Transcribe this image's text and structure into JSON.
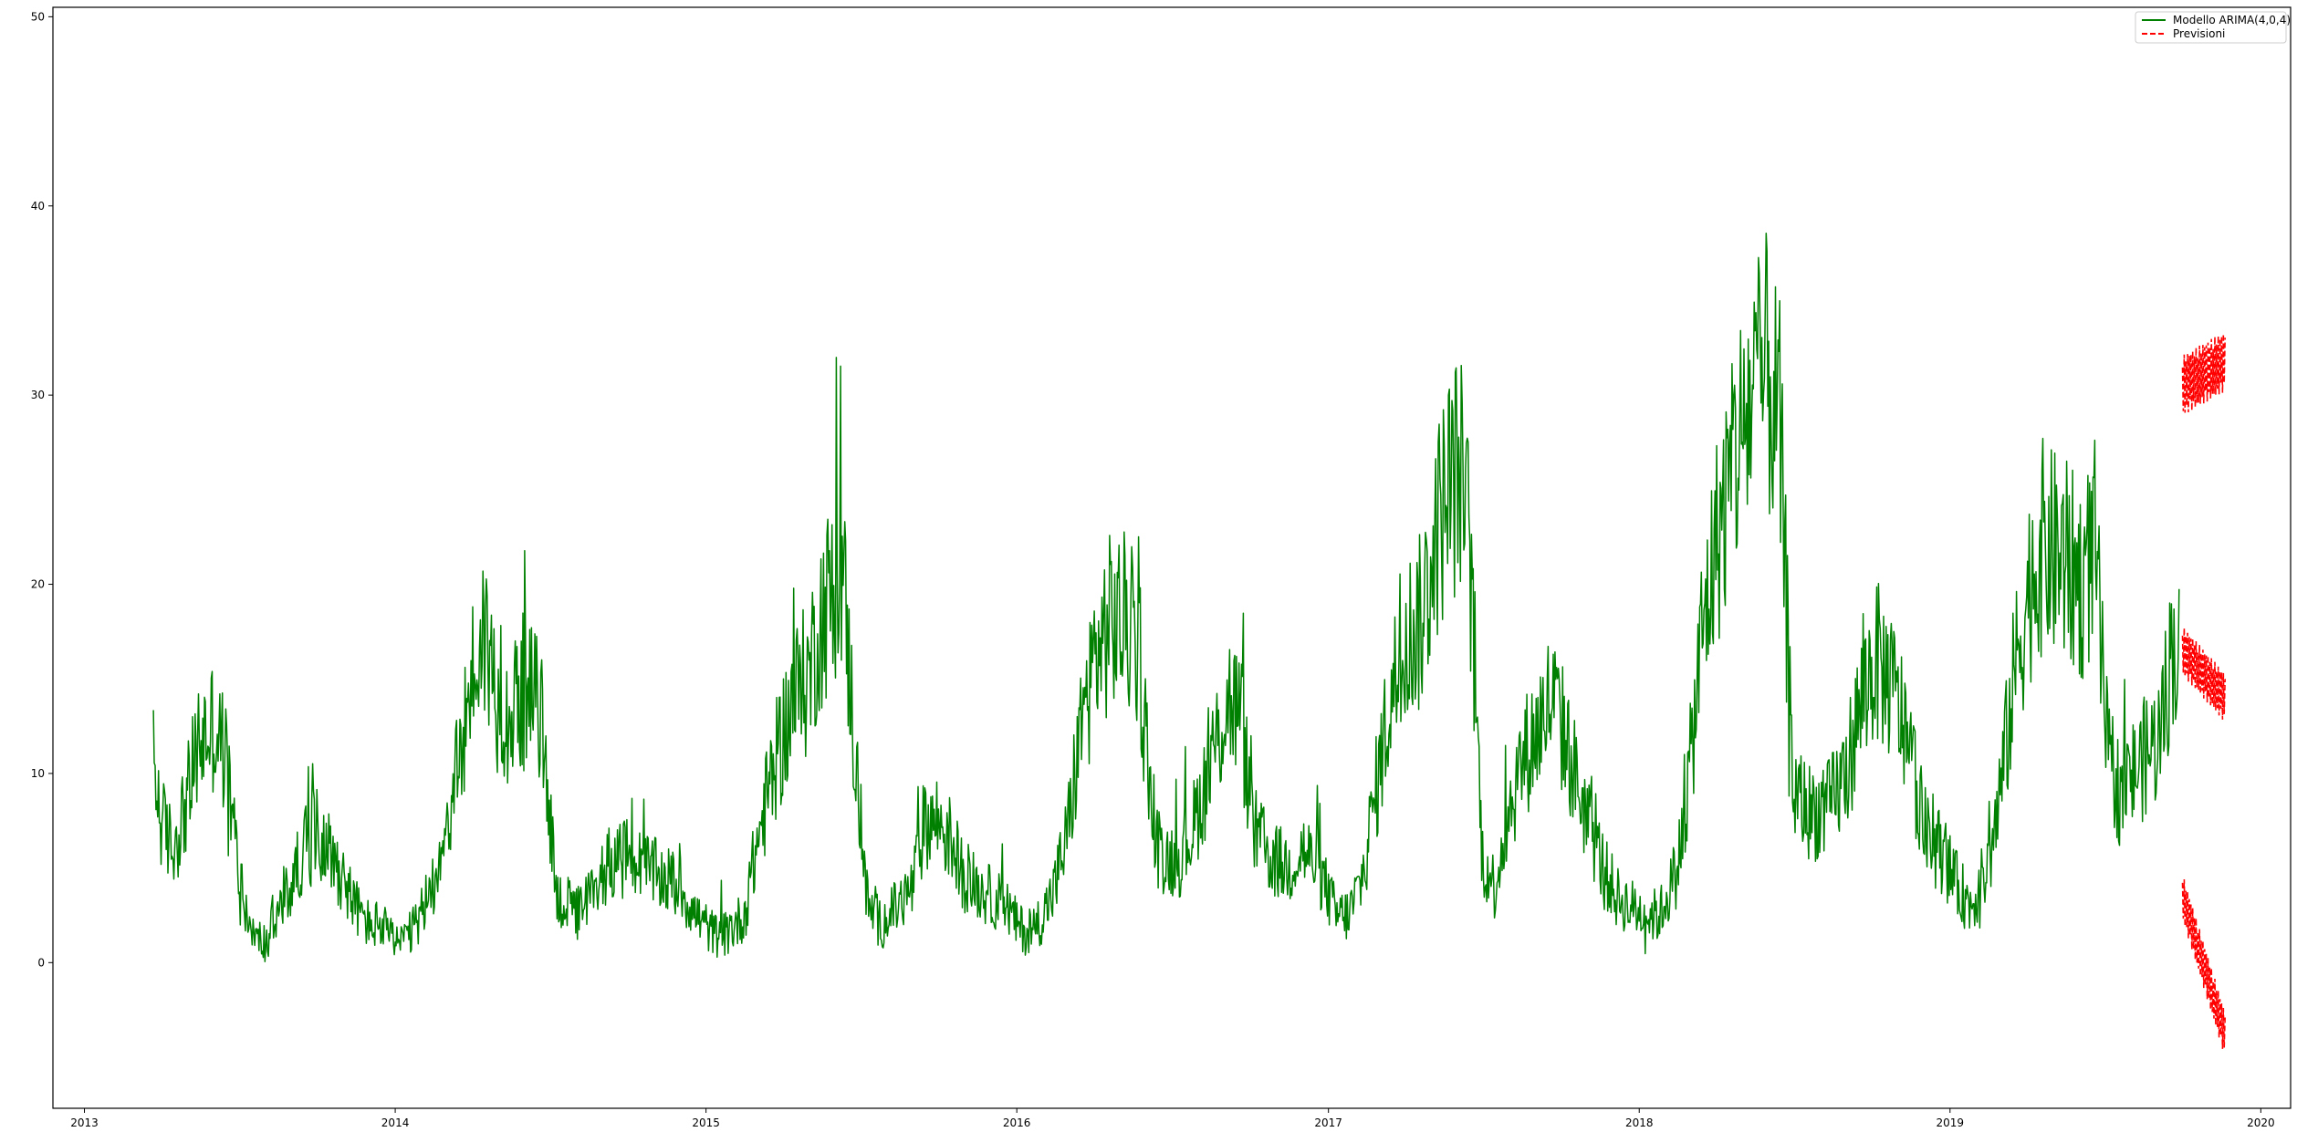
{
  "chart_data": {
    "type": "line",
    "title": "",
    "xlabel": "",
    "ylabel": "",
    "x_range": [
      "2012-11-25",
      "2020-02-05"
    ],
    "ylim": [
      -7.7,
      50.5
    ],
    "grid": false,
    "legend_position": "top-right",
    "x_tick_labels": [
      "2013",
      "2014",
      "2015",
      "2016",
      "2017",
      "2018",
      "2019",
      "2020"
    ],
    "x_tick_dates": [
      "2013-01-01",
      "2014-01-01",
      "2015-01-01",
      "2016-01-01",
      "2017-01-01",
      "2018-01-01",
      "2019-01-01",
      "2020-01-01"
    ],
    "y_ticks": [
      0,
      10,
      20,
      30,
      40,
      50
    ],
    "y_tick_labels": [
      "0",
      "10",
      "20",
      "30",
      "40",
      "50"
    ],
    "series": [
      {
        "name": "Modello ARIMA(4,0,4)",
        "color": "#008000",
        "style": "solid",
        "date_range": [
          "2013-03-23",
          "2019-09-27"
        ],
        "points": [
          [
            "2013-03-23",
            10.5
          ],
          [
            "2013-04-01",
            7.5
          ],
          [
            "2013-04-15",
            6.0
          ],
          [
            "2013-05-01",
            8.5
          ],
          [
            "2013-05-15",
            11.5
          ],
          [
            "2013-06-01",
            12.5
          ],
          [
            "2013-06-15",
            11.0
          ],
          [
            "2013-07-01",
            5.0
          ],
          [
            "2013-07-15",
            1.5
          ],
          [
            "2013-08-01",
            1.0
          ],
          [
            "2013-08-15",
            2.5
          ],
          [
            "2013-09-01",
            4.0
          ],
          [
            "2013-09-15",
            6.0
          ],
          [
            "2013-10-01",
            7.0
          ],
          [
            "2013-10-15",
            6.0
          ],
          [
            "2013-11-01",
            4.5
          ],
          [
            "2013-11-15",
            3.0
          ],
          [
            "2013-12-01",
            2.0
          ],
          [
            "2013-12-15",
            2.0
          ],
          [
            "2014-01-01",
            1.0
          ],
          [
            "2014-01-20",
            1.5
          ],
          [
            "2014-02-10",
            3.5
          ],
          [
            "2014-03-01",
            7.0
          ],
          [
            "2014-03-15",
            10.0
          ],
          [
            "2014-04-01",
            15.0
          ],
          [
            "2014-04-15",
            17.5
          ],
          [
            "2014-05-01",
            14.0
          ],
          [
            "2014-05-15",
            13.0
          ],
          [
            "2014-06-01",
            14.5
          ],
          [
            "2014-06-20",
            13.5
          ],
          [
            "2014-07-10",
            3.5
          ],
          [
            "2014-08-01",
            2.5
          ],
          [
            "2014-08-20",
            3.5
          ],
          [
            "2014-09-10",
            5.5
          ],
          [
            "2014-10-01",
            5.5
          ],
          [
            "2014-10-20",
            5.0
          ],
          [
            "2014-11-10",
            4.5
          ],
          [
            "2014-12-01",
            4.0
          ],
          [
            "2014-12-20",
            2.5
          ],
          [
            "2015-01-10",
            1.5
          ],
          [
            "2015-01-25",
            1.5
          ],
          [
            "2015-02-15",
            2.5
          ],
          [
            "2015-03-01",
            6.0
          ],
          [
            "2015-03-15",
            9.0
          ],
          [
            "2015-04-01",
            12.0
          ],
          [
            "2015-04-15",
            14.0
          ],
          [
            "2015-05-01",
            15.0
          ],
          [
            "2015-05-15",
            18.0
          ],
          [
            "2015-06-01",
            20.0
          ],
          [
            "2015-06-10",
            21.0
          ],
          [
            "2015-06-25",
            11.0
          ],
          [
            "2015-07-10",
            3.0
          ],
          [
            "2015-07-25",
            2.0
          ],
          [
            "2015-08-15",
            3.0
          ],
          [
            "2015-09-01",
            4.0
          ],
          [
            "2015-09-15",
            7.5
          ],
          [
            "2015-10-01",
            7.5
          ],
          [
            "2015-10-15",
            6.5
          ],
          [
            "2015-11-01",
            4.5
          ],
          [
            "2015-11-15",
            4.0
          ],
          [
            "2015-12-01",
            3.5
          ],
          [
            "2015-12-20",
            3.0
          ],
          [
            "2016-01-01",
            2.0
          ],
          [
            "2016-01-15",
            1.5
          ],
          [
            "2016-02-01",
            2.5
          ],
          [
            "2016-02-15",
            4.0
          ],
          [
            "2016-03-01",
            7.0
          ],
          [
            "2016-03-15",
            12.0
          ],
          [
            "2016-04-01",
            16.0
          ],
          [
            "2016-04-20",
            18.0
          ],
          [
            "2016-05-10",
            18.0
          ],
          [
            "2016-05-25",
            16.0
          ],
          [
            "2016-06-10",
            6.5
          ],
          [
            "2016-06-25",
            5.5
          ],
          [
            "2016-07-10",
            5.5
          ],
          [
            "2016-07-25",
            7.0
          ],
          [
            "2016-08-10",
            9.5
          ],
          [
            "2016-08-25",
            12.0
          ],
          [
            "2016-09-05",
            14.0
          ],
          [
            "2016-09-20",
            13.0
          ],
          [
            "2016-10-05",
            7.0
          ],
          [
            "2016-10-25",
            5.5
          ],
          [
            "2016-11-15",
            5.0
          ],
          [
            "2016-12-01",
            6.0
          ],
          [
            "2016-12-20",
            5.0
          ],
          [
            "2017-01-10",
            2.5
          ],
          [
            "2017-01-25",
            2.5
          ],
          [
            "2017-02-10",
            4.5
          ],
          [
            "2017-03-01",
            10.0
          ],
          [
            "2017-03-15",
            14.0
          ],
          [
            "2017-04-01",
            17.0
          ],
          [
            "2017-04-20",
            18.0
          ],
          [
            "2017-05-05",
            22.0
          ],
          [
            "2017-05-20",
            25.0
          ],
          [
            "2017-06-05",
            26.0
          ],
          [
            "2017-06-15",
            22.0
          ],
          [
            "2017-07-01",
            5.5
          ],
          [
            "2017-07-15",
            4.0
          ],
          [
            "2017-08-01",
            8.0
          ],
          [
            "2017-08-15",
            10.5
          ],
          [
            "2017-09-01",
            12.0
          ],
          [
            "2017-09-20",
            14.0
          ],
          [
            "2017-10-05",
            12.0
          ],
          [
            "2017-10-20",
            9.5
          ],
          [
            "2017-11-05",
            7.0
          ],
          [
            "2017-11-20",
            5.0
          ],
          [
            "2017-12-05",
            3.5
          ],
          [
            "2017-12-20",
            3.0
          ],
          [
            "2018-01-10",
            2.5
          ],
          [
            "2018-01-25",
            2.5
          ],
          [
            "2018-02-15",
            5.0
          ],
          [
            "2018-03-01",
            10.0
          ],
          [
            "2018-03-15",
            17.0
          ],
          [
            "2018-04-01",
            22.0
          ],
          [
            "2018-04-15",
            25.0
          ],
          [
            "2018-05-01",
            28.0
          ],
          [
            "2018-05-15",
            30.0
          ],
          [
            "2018-06-01",
            31.0
          ],
          [
            "2018-06-15",
            28.0
          ],
          [
            "2018-07-01",
            9.0
          ],
          [
            "2018-07-20",
            8.0
          ],
          [
            "2018-08-10",
            8.0
          ],
          [
            "2018-09-01",
            10.0
          ],
          [
            "2018-09-20",
            14.0
          ],
          [
            "2018-10-05",
            16.0
          ],
          [
            "2018-10-20",
            15.0
          ],
          [
            "2018-11-05",
            13.0
          ],
          [
            "2018-11-20",
            10.0
          ],
          [
            "2018-12-05",
            6.5
          ],
          [
            "2018-12-20",
            6.0
          ],
          [
            "2019-01-10",
            4.0
          ],
          [
            "2019-01-25",
            3.0
          ],
          [
            "2019-02-15",
            5.0
          ],
          [
            "2019-03-01",
            9.0
          ],
          [
            "2019-03-20",
            16.0
          ],
          [
            "2019-04-05",
            20.0
          ],
          [
            "2019-04-20",
            22.0
          ],
          [
            "2019-05-05",
            21.5
          ],
          [
            "2019-05-20",
            21.0
          ],
          [
            "2019-06-05",
            20.0
          ],
          [
            "2019-06-20",
            22.0
          ],
          [
            "2019-07-05",
            11.0
          ],
          [
            "2019-07-20",
            9.0
          ],
          [
            "2019-08-05",
            10.0
          ],
          [
            "2019-08-20",
            11.0
          ],
          [
            "2019-09-05",
            12.0
          ],
          [
            "2019-09-20",
            17.0
          ],
          [
            "2019-09-27",
            16.0
          ]
        ]
      },
      {
        "name": "Previsioni",
        "color": "#ff0000",
        "style": "dashed",
        "date_range": [
          "2019-10-01",
          "2019-11-20"
        ],
        "bands": [
          {
            "start": 30.5,
            "end": 31.8,
            "amplitude": 1.6
          },
          {
            "start": 16.5,
            "end": 14.0,
            "amplitude": 1.3
          },
          {
            "start": 3.5,
            "end": -3.8,
            "amplitude": 1.2
          }
        ]
      }
    ]
  }
}
